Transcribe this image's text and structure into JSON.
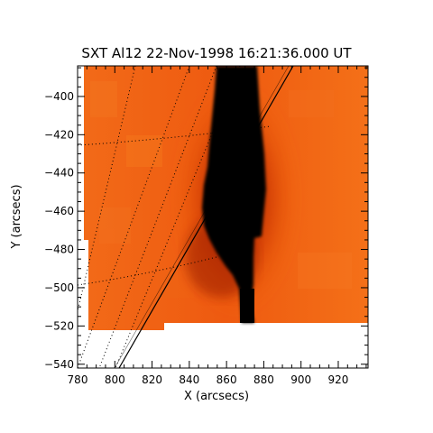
{
  "image": {
    "title": "SXT Al12 22-Nov-1998 16:21:36.000 UT",
    "xlabel": "X (arcsecs)",
    "ylabel": "Y (arcsecs)",
    "xlim": [
      780,
      936
    ],
    "ylim": [
      -542,
      -384
    ],
    "xticks": [
      {
        "v": 780,
        "label": "780"
      },
      {
        "v": 800,
        "label": "800"
      },
      {
        "v": 820,
        "label": "820"
      },
      {
        "v": 840,
        "label": "840"
      },
      {
        "v": 860,
        "label": "860"
      },
      {
        "v": 880,
        "label": "880"
      },
      {
        "v": 900,
        "label": "900"
      },
      {
        "v": 920,
        "label": "920"
      }
    ],
    "yticks": [
      {
        "v": -400,
        "label": "−400"
      },
      {
        "v": -420,
        "label": "−420"
      },
      {
        "v": -440,
        "label": "−440"
      },
      {
        "v": -460,
        "label": "−460"
      },
      {
        "v": -480,
        "label": "−480"
      },
      {
        "v": -500,
        "label": "−500"
      },
      {
        "v": -520,
        "label": "−520"
      },
      {
        "v": -540,
        "label": "−540"
      }
    ],
    "colors": {
      "background": "#ffffff",
      "sun_bright": "#f06010",
      "sun_mid": "#d83c08",
      "sun_dark": "#5a0a00",
      "loop_core": "#000000",
      "axis": "#000000"
    },
    "features": {
      "limb": "solid black line (solar limb)",
      "grid": "dotted heliographic grid",
      "blank_region": "white, outside field of view"
    }
  }
}
